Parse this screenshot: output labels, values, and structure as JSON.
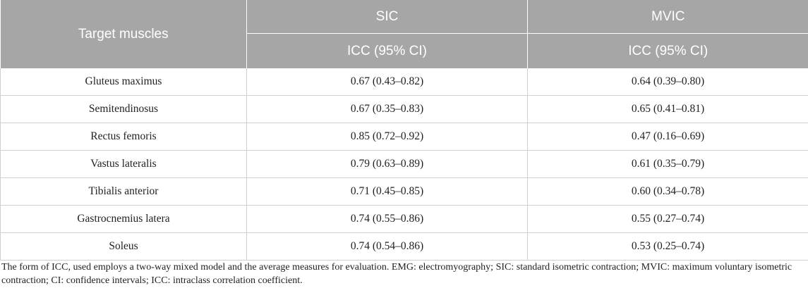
{
  "header": {
    "target_label": "Target muscles",
    "group1": "SIC",
    "group2": "MVIC",
    "sub1": "ICC (95% CI)",
    "sub2": "ICC (95% CI)"
  },
  "rows": [
    {
      "muscle": "Gluteus maximus",
      "sic": "0.67 (0.43–0.82)",
      "mvic": "0.64 (0.39–0.80)"
    },
    {
      "muscle": "Semitendinosus",
      "sic": "0.67 (0.35–0.83)",
      "mvic": "0.65 (0.41–0.81)"
    },
    {
      "muscle": "Rectus femoris",
      "sic": "0.85 (0.72–0.92)",
      "mvic": "0.47 (0.16–0.69)"
    },
    {
      "muscle": "Vastus lateralis",
      "sic": "0.79 (0.63–0.89)",
      "mvic": "0.61 (0.35–0.79)"
    },
    {
      "muscle": "Tibialis anterior",
      "sic": "0.71 (0.45–0.85)",
      "mvic": "0.60 (0.34–0.78)"
    },
    {
      "muscle": "Gastrocnemius latera",
      "sic": "0.74 (0.55–0.86)",
      "mvic": "0.55 (0.27–0.74)"
    },
    {
      "muscle": "Soleus",
      "sic": "0.74 (0.54–0.86)",
      "mvic": "0.53 (0.25–0.74)"
    }
  ],
  "footnote": "The form of ICC, used employs a two-way mixed model and the average measures for evaluation. EMG: electromyography; SIC: standard isometric contraction; MVIC: maximum voluntary isometric contraction; CI: confidence intervals; ICC: intraclass correlation coefficient."
}
